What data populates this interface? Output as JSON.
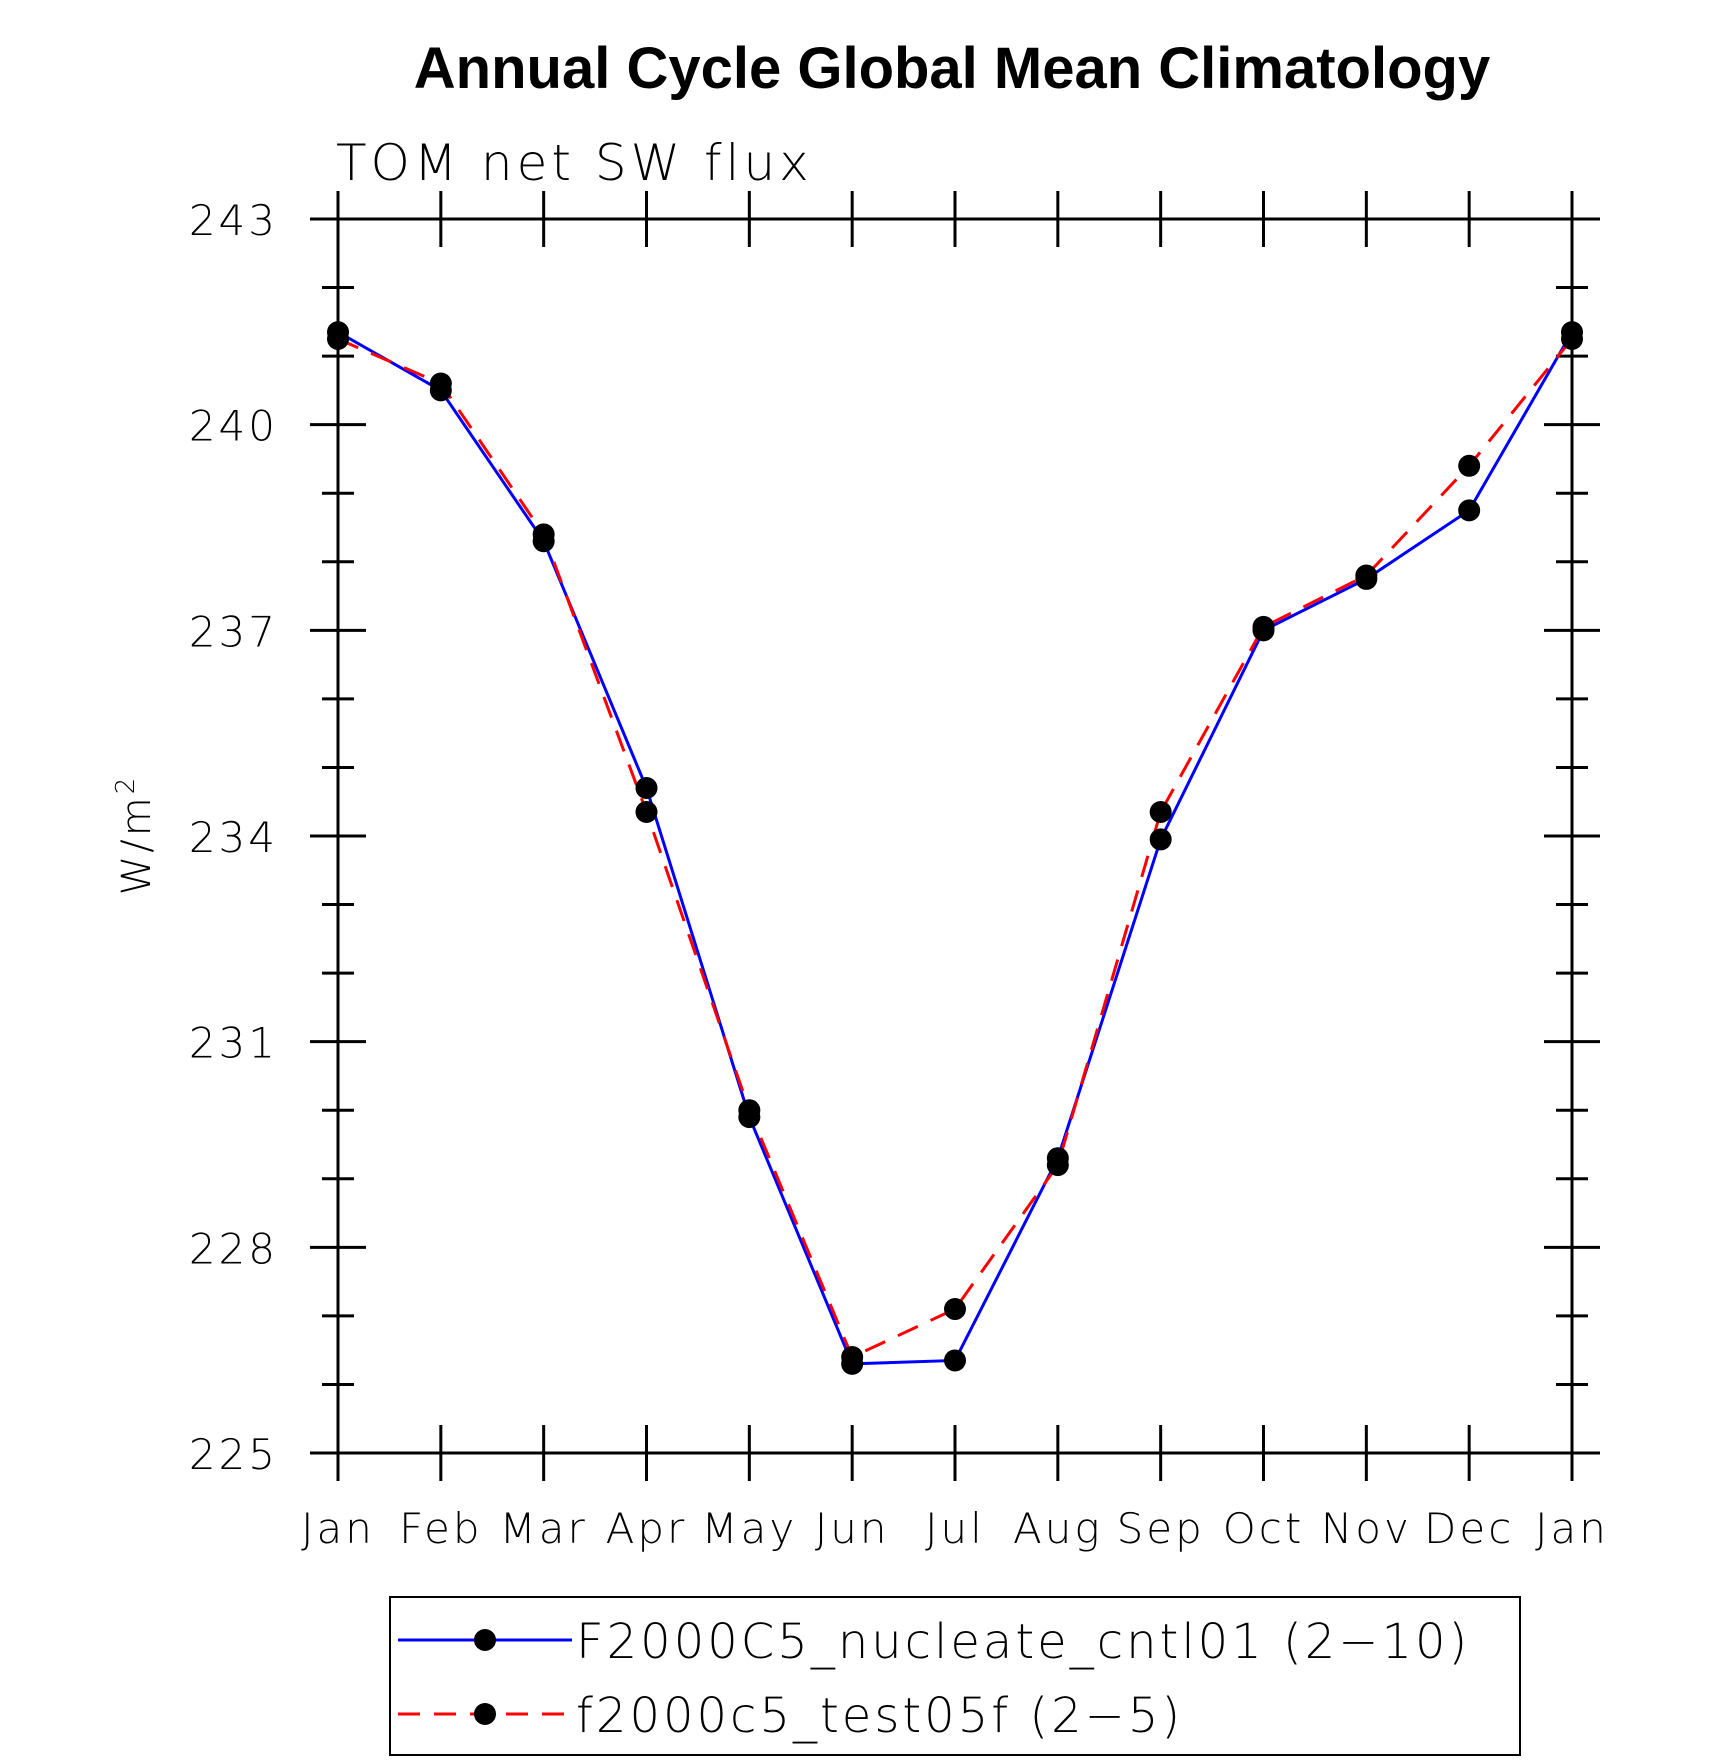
{
  "chart_data": {
    "type": "line",
    "title": "Annual Cycle Global Mean Climatology",
    "subtitle": "TOM net SW flux",
    "ylabel_base": "W/m",
    "ylabel_sup": "2",
    "xlabel": "",
    "categories": [
      "Jan",
      "Feb",
      "Mar",
      "Apr",
      "May",
      "Jun",
      "Jul",
      "Aug",
      "Sep",
      "Oct",
      "Nov",
      "Dec",
      "Jan"
    ],
    "ylim": [
      225,
      243
    ],
    "yticks": [
      "225",
      "228",
      "231",
      "234",
      "237",
      "240",
      "243"
    ],
    "grid": false,
    "legend_position": "bottom",
    "series": [
      {
        "name": "F2000C5_nucleate_cntl01 (2−10)",
        "color": "#0000ff",
        "style": "solid",
        "values": [
          241.35,
          240.5,
          238.3,
          234.7,
          229.9,
          226.3,
          226.35,
          229.3,
          233.95,
          237.0,
          237.75,
          238.75,
          241.35
        ]
      },
      {
        "name": "f2000c5_test05f (2−5)",
        "color": "#ff0000",
        "style": "dashed",
        "values": [
          241.25,
          240.6,
          238.4,
          234.35,
          230.0,
          226.4,
          227.1,
          229.2,
          234.35,
          237.05,
          237.8,
          239.4,
          241.25
        ]
      }
    ]
  }
}
